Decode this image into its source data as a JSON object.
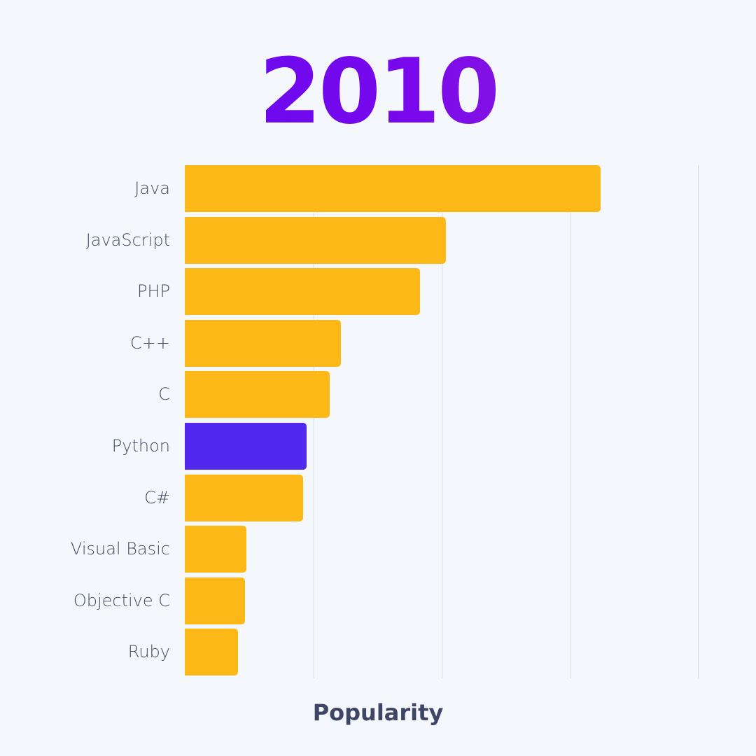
{
  "title": "2010",
  "colors": {
    "background": "#f4f8fc",
    "default_bar": "#fbb817",
    "highlight_bar": "#5128ee",
    "label_text": "#454b64",
    "axis_label_text": "#3e4566",
    "gridline": "#d5dbe3",
    "title_gradient_start": "#5a0af2",
    "title_gradient_end": "#9b30cc"
  },
  "chart_data": {
    "type": "bar",
    "orientation": "horizontal",
    "title": "2010",
    "xlabel": "Popularity",
    "ylabel": "",
    "categories": [
      "Java",
      "JavaScript",
      "PHP",
      "C++",
      "C",
      "Python",
      "C#",
      "Visual Basic",
      "Objective C",
      "Ruby"
    ],
    "values": [
      80.9,
      50.8,
      45.8,
      30.4,
      28.2,
      23.7,
      23.0,
      12.0,
      11.7,
      10.4
    ],
    "value_scale_note": "relative bar length, 0-100 scale of plot width (no numeric ticks shown)",
    "xlim": [
      0,
      100
    ],
    "gridlines_x": [
      25,
      50,
      75,
      100
    ],
    "grid": true,
    "x_tick_labels_visible": false,
    "highlighted_category": "Python",
    "legend": null
  }
}
